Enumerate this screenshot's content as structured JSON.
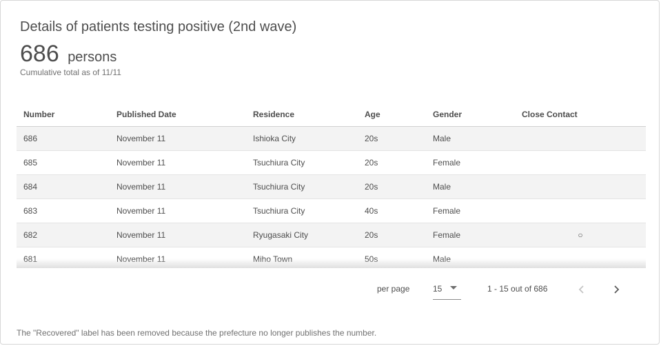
{
  "card": {
    "title": "Details of patients testing positive (2nd wave)",
    "total_value": "686",
    "total_unit": "persons",
    "cumulative_label": "Cumulative total as of 11/11"
  },
  "table": {
    "headers": {
      "number": "Number",
      "published_date": "Published Date",
      "residence": "Residence",
      "age": "Age",
      "gender": "Gender",
      "close_contact": "Close Contact"
    },
    "rows": [
      {
        "number": "686",
        "published_date": "November 11",
        "residence": "Ishioka City",
        "age": "20s",
        "gender": "Male",
        "close_contact": ""
      },
      {
        "number": "685",
        "published_date": "November 11",
        "residence": "Tsuchiura City",
        "age": "20s",
        "gender": "Female",
        "close_contact": ""
      },
      {
        "number": "684",
        "published_date": "November 11",
        "residence": "Tsuchiura City",
        "age": "20s",
        "gender": "Male",
        "close_contact": ""
      },
      {
        "number": "683",
        "published_date": "November 11",
        "residence": "Tsuchiura City",
        "age": "40s",
        "gender": "Female",
        "close_contact": ""
      },
      {
        "number": "682",
        "published_date": "November 11",
        "residence": "Ryugasaki City",
        "age": "20s",
        "gender": "Female",
        "close_contact": "○"
      },
      {
        "number": "681",
        "published_date": "November 11",
        "residence": "Miho Town",
        "age": "50s",
        "gender": "Male",
        "close_contact": ""
      }
    ]
  },
  "pagination": {
    "per_page_label": "per page",
    "per_page_value": "15",
    "range_text": "1 - 15 out of 686",
    "prev_icon": "chevron-left-icon",
    "next_icon": "chevron-right-icon"
  },
  "footer": {
    "note": "The \"Recovered\" label has been removed because the prefecture no longer publishes the number."
  },
  "colors": {
    "text": "#4d4d4d",
    "muted_text": "#707070",
    "stripe": "#f3f3f3",
    "border": "#d6d6d6"
  }
}
